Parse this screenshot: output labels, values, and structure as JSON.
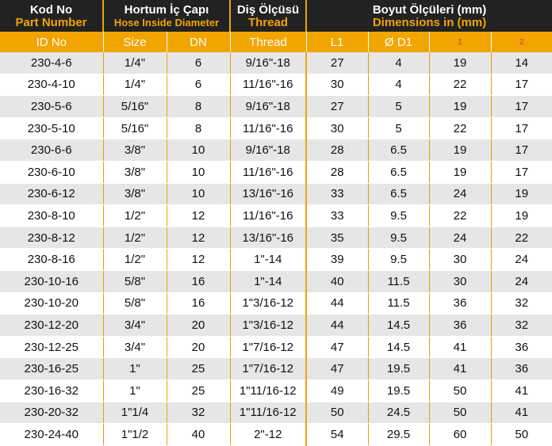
{
  "header": {
    "group1_title": "Kod No",
    "group1_sub": "Part Number",
    "group2_title": "Hortum İç Çapı",
    "group2_sub": "Hose Inside Diameter",
    "group3_title": "Diş Ölçüsü",
    "group3_sub": "Thread",
    "group4_title": "Boyut Ölçüleri (mm)",
    "group4_sub": "Dimensions in (mm)"
  },
  "columns": [
    "ID No",
    "Size",
    "DN",
    "Thread",
    "L1",
    "Ø D1",
    "1",
    "2"
  ],
  "rows": [
    [
      "230-4-6",
      "1/4\"",
      "6",
      "9/16\"-18",
      "27",
      "4",
      "19",
      "14"
    ],
    [
      "230-4-10",
      "1/4\"",
      "6",
      "11/16\"-16",
      "30",
      "4",
      "22",
      "17"
    ],
    [
      "230-5-6",
      "5/16\"",
      "8",
      "9/16\"-18",
      "27",
      "5",
      "19",
      "17"
    ],
    [
      "230-5-10",
      "5/16\"",
      "8",
      "11/16\"-16",
      "30",
      "5",
      "22",
      "17"
    ],
    [
      "230-6-6",
      "3/8\"",
      "10",
      "9/16\"-18",
      "28",
      "6.5",
      "19",
      "17"
    ],
    [
      "230-6-10",
      "3/8\"",
      "10",
      "11/16\"-16",
      "28",
      "6.5",
      "19",
      "17"
    ],
    [
      "230-6-12",
      "3/8\"",
      "10",
      "13/16\"-16",
      "33",
      "6.5",
      "24",
      "19"
    ],
    [
      "230-8-10",
      "1/2\"",
      "12",
      "11/16\"-16",
      "33",
      "9.5",
      "22",
      "19"
    ],
    [
      "230-8-12",
      "1/2\"",
      "12",
      "13/16\"-16",
      "35",
      "9.5",
      "24",
      "22"
    ],
    [
      "230-8-16",
      "1/2\"",
      "12",
      "1\"-14",
      "39",
      "9.5",
      "30",
      "24"
    ],
    [
      "230-10-16",
      "5/8\"",
      "16",
      "1\"-14",
      "40",
      "11.5",
      "30",
      "24"
    ],
    [
      "230-10-20",
      "5/8\"",
      "16",
      "1\"3/16-12",
      "44",
      "11.5",
      "36",
      "32"
    ],
    [
      "230-12-20",
      "3/4\"",
      "20",
      "1\"3/16-12",
      "44",
      "14.5",
      "36",
      "32"
    ],
    [
      "230-12-25",
      "3/4\"",
      "20",
      "1\"7/16-12",
      "47",
      "14.5",
      "41",
      "36"
    ],
    [
      "230-16-25",
      "1\"",
      "25",
      "1\"7/16-12",
      "47",
      "19.5",
      "41",
      "36"
    ],
    [
      "230-16-32",
      "1\"",
      "25",
      "1\"11/16-12",
      "49",
      "19.5",
      "50",
      "41"
    ],
    [
      "230-20-32",
      "1\"1/4",
      "32",
      "1\"11/16-12",
      "50",
      "24.5",
      "50",
      "41"
    ],
    [
      "230-24-40",
      "1\"1/2",
      "40",
      "2\"-12",
      "54",
      "29.5",
      "60",
      "50"
    ]
  ]
}
